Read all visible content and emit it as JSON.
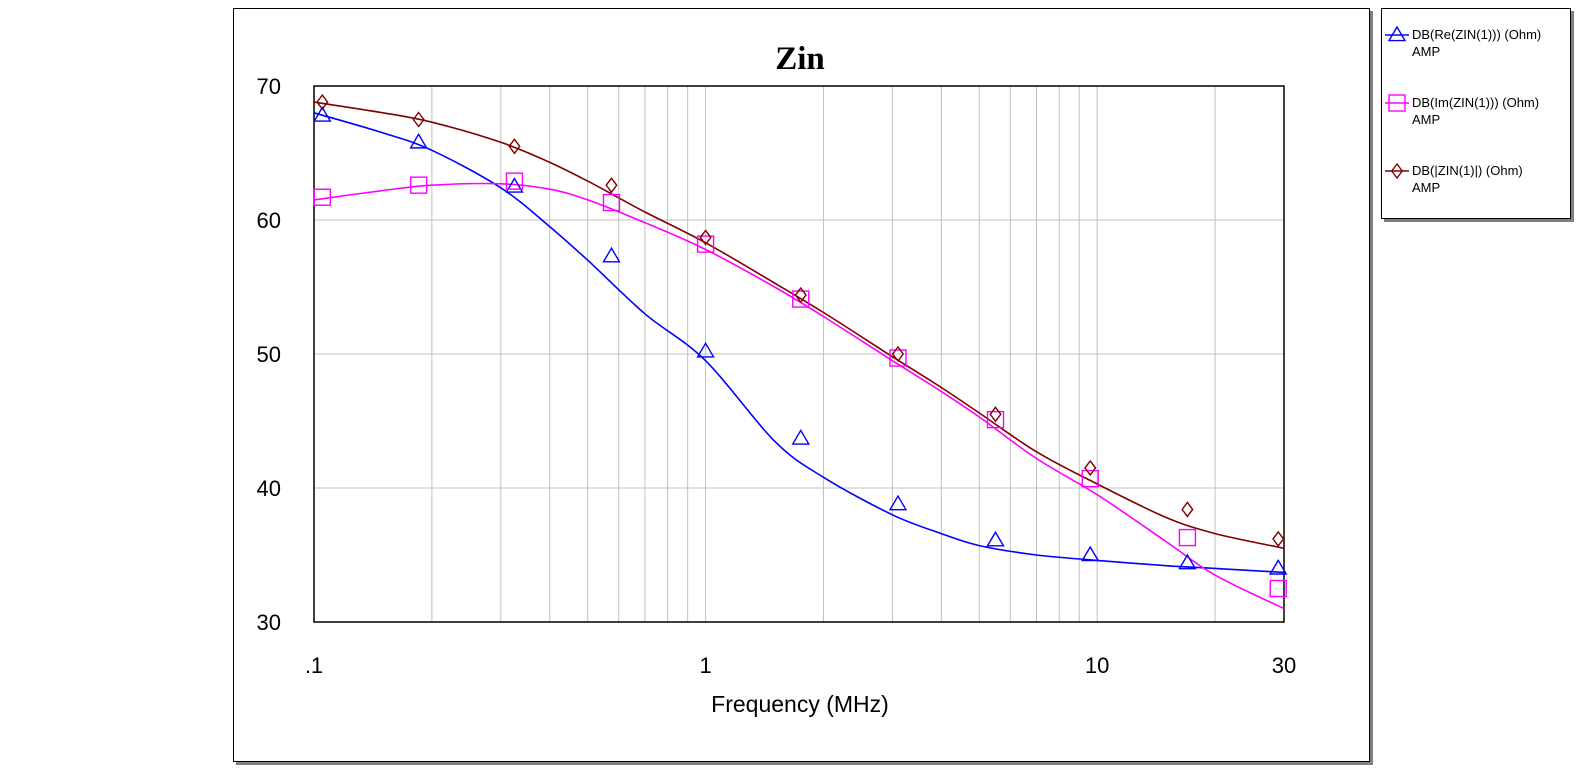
{
  "chart_data": {
    "type": "line",
    "title": "Zin",
    "xlabel": "Frequency (MHz)",
    "ylabel": "",
    "x_scale": "log",
    "xlim": [
      0.1,
      30
    ],
    "ylim": [
      30,
      70
    ],
    "x_ticks": [
      {
        "value": 0.1,
        "label": ".1"
      },
      {
        "value": 1,
        "label": "1"
      },
      {
        "value": 10,
        "label": "10"
      },
      {
        "value": 30,
        "label": "30"
      }
    ],
    "y_ticks": [
      {
        "value": 30,
        "label": "30"
      },
      {
        "value": 40,
        "label": "40"
      },
      {
        "value": 50,
        "label": "50"
      },
      {
        "value": 60,
        "label": "60"
      },
      {
        "value": 70,
        "label": "70"
      }
    ],
    "grid": true,
    "legend_position": "right",
    "series": [
      {
        "name": "DB(Re(ZIN(1))) (Ohm)",
        "subname": "AMP",
        "color": "#0000ff",
        "marker": "triangle",
        "x": [
          0.1,
          0.15,
          0.2,
          0.3,
          0.4,
          0.5,
          0.7,
          1,
          1.5,
          2,
          3,
          4,
          5,
          7,
          10,
          15,
          20,
          30
        ],
        "values": [
          68.0,
          66.5,
          65.2,
          62.4,
          59.5,
          57.0,
          53.0,
          49.5,
          43.5,
          40.8,
          38.0,
          36.6,
          35.7,
          35.0,
          34.6,
          34.2,
          34.0,
          33.7
        ],
        "marker_x": [
          0.105,
          0.185,
          0.325,
          0.575,
          1.0,
          1.75,
          3.1,
          5.5,
          9.6,
          17,
          29
        ],
        "marker_values": [
          67.8,
          65.8,
          62.5,
          57.3,
          50.2,
          43.7,
          38.8,
          36.1,
          35.0,
          34.4,
          34.0
        ]
      },
      {
        "name": "DB(Im(ZIN(1))) (Ohm)",
        "subname": "AMP",
        "color": "#ff00ff",
        "marker": "square",
        "x": [
          0.1,
          0.15,
          0.2,
          0.3,
          0.4,
          0.5,
          0.7,
          1,
          1.5,
          2,
          3,
          4,
          5,
          7,
          10,
          15,
          20,
          30
        ],
        "values": [
          61.5,
          62.2,
          62.6,
          62.7,
          62.3,
          61.5,
          59.8,
          57.8,
          55.0,
          52.8,
          49.5,
          47.2,
          45.3,
          42.2,
          39.5,
          36.0,
          33.5,
          31.0
        ],
        "marker_x": [
          0.105,
          0.185,
          0.325,
          0.575,
          1.0,
          1.75,
          3.1,
          5.5,
          9.6,
          17,
          29
        ],
        "marker_values": [
          61.7,
          62.6,
          62.9,
          61.3,
          58.2,
          54.1,
          49.7,
          45.1,
          40.7,
          36.3,
          32.5
        ]
      },
      {
        "name": "DB(|ZIN(1)|) (Ohm)",
        "subname": "AMP",
        "color": "#800000",
        "marker": "diamond",
        "x": [
          0.1,
          0.15,
          0.2,
          0.3,
          0.4,
          0.5,
          0.7,
          1,
          1.5,
          2,
          3,
          4,
          5,
          7,
          10,
          15,
          20,
          30
        ],
        "values": [
          68.8,
          68.0,
          67.3,
          65.8,
          64.3,
          62.9,
          60.6,
          58.3,
          55.3,
          53.1,
          49.8,
          47.5,
          45.6,
          42.7,
          40.3,
          37.8,
          36.6,
          35.5
        ],
        "marker_x": [
          0.105,
          0.185,
          0.325,
          0.575,
          1.0,
          1.75,
          3.1,
          5.5,
          9.6,
          17,
          29
        ],
        "marker_values": [
          68.8,
          67.5,
          65.5,
          62.6,
          58.7,
          54.4,
          50.0,
          45.5,
          41.5,
          38.4,
          36.2
        ]
      }
    ]
  }
}
